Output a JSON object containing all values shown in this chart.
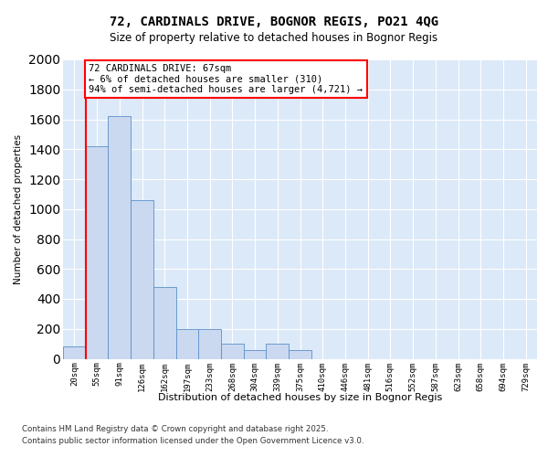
{
  "title_line1": "72, CARDINALS DRIVE, BOGNOR REGIS, PO21 4QG",
  "title_line2": "Size of property relative to detached houses in Bognor Regis",
  "xlabel": "Distribution of detached houses by size in Bognor Regis",
  "ylabel": "Number of detached properties",
  "categories": [
    "20sqm",
    "55sqm",
    "91sqm",
    "126sqm",
    "162sqm",
    "197sqm",
    "233sqm",
    "268sqm",
    "304sqm",
    "339sqm",
    "375sqm",
    "410sqm",
    "446sqm",
    "481sqm",
    "516sqm",
    "552sqm",
    "587sqm",
    "623sqm",
    "658sqm",
    "694sqm",
    "729sqm"
  ],
  "values": [
    80,
    1420,
    1620,
    1060,
    480,
    200,
    200,
    100,
    60,
    100,
    60,
    0,
    0,
    0,
    0,
    0,
    0,
    0,
    0,
    0,
    0
  ],
  "bar_color": "#cad9f0",
  "bar_edge_color": "#5b8fc9",
  "red_line_x": 0.5,
  "annotation_text": "72 CARDINALS DRIVE: 67sqm\n← 6% of detached houses are smaller (310)\n94% of semi-detached houses are larger (4,721) →",
  "footer_line1": "Contains HM Land Registry data © Crown copyright and database right 2025.",
  "footer_line2": "Contains public sector information licensed under the Open Government Licence v3.0.",
  "ylim_max": 2000,
  "bg_color": "#dce9f8",
  "fig_bg": "#ffffff"
}
